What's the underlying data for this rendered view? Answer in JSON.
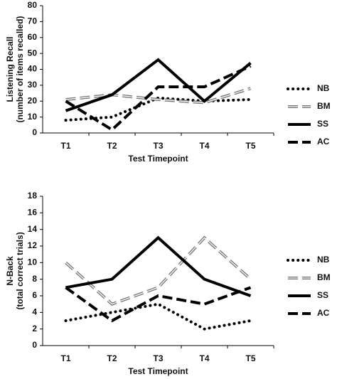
{
  "chart_data": [
    {
      "type": "line",
      "ylabel": [
        "Listening Recall",
        "(number of items recalled)"
      ],
      "xlabel": "Test Timepoint",
      "categories": [
        "T1",
        "T2",
        "T3",
        "T4",
        "T5"
      ],
      "ylim": [
        0,
        80
      ],
      "yticks": [
        0,
        10,
        20,
        30,
        40,
        50,
        60,
        70,
        80
      ],
      "series": [
        {
          "name": "NB",
          "color": "#000000",
          "style": "dotted",
          "values": [
            8,
            10,
            22,
            20,
            21
          ]
        },
        {
          "name": "BM",
          "color": "#777777",
          "style": "double-dashed",
          "values": [
            21,
            24,
            21,
            19,
            28
          ]
        },
        {
          "name": "SS",
          "color": "#000000",
          "style": "solid",
          "values": [
            14,
            24,
            46,
            20,
            44
          ]
        },
        {
          "name": "AC",
          "color": "#000000",
          "style": "dashed",
          "values": [
            20,
            2,
            29,
            29,
            42
          ]
        }
      ]
    },
    {
      "type": "line",
      "ylabel": [
        "N-Back",
        "(total correct trials)"
      ],
      "xlabel": "Test Timepoint",
      "categories": [
        "T1",
        "T2",
        "T3",
        "T4",
        "T5"
      ],
      "ylim": [
        0,
        18
      ],
      "yticks": [
        0,
        2,
        4,
        6,
        8,
        10,
        12,
        14,
        16,
        18
      ],
      "series": [
        {
          "name": "NB",
          "color": "#000000",
          "style": "dotted",
          "values": [
            3,
            4,
            5,
            2,
            3
          ]
        },
        {
          "name": "BM",
          "color": "#777777",
          "style": "double-dashed",
          "values": [
            10,
            5,
            7,
            13,
            8
          ]
        },
        {
          "name": "SS",
          "color": "#000000",
          "style": "solid",
          "values": [
            7,
            8,
            13,
            8,
            6
          ]
        },
        {
          "name": "AC",
          "color": "#000000",
          "style": "dashed",
          "values": [
            7,
            3,
            6,
            5,
            7
          ]
        }
      ]
    }
  ]
}
